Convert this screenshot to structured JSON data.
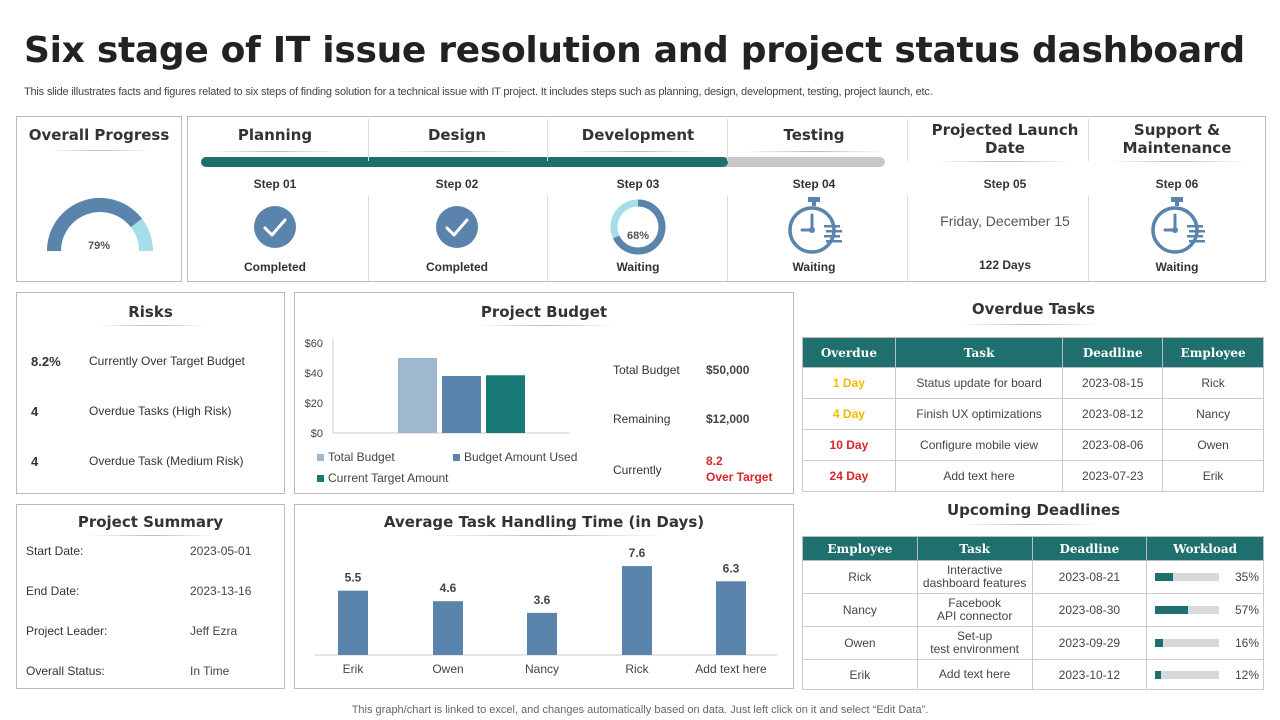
{
  "title": "Six stage of IT issue resolution and project status dashboard",
  "subtitle": "This slide illustrates facts and figures related to six steps of finding solution for a technical issue with IT project. It includes steps such as planning, design, development, testing, project launch, etc.",
  "footer": "This graph/chart is linked to excel, and changes automatically based on data. Just left click on it and select “Edit Data”.",
  "colors": {
    "teal": "#1f6f6f",
    "blue": "#5b84ad",
    "light_blue": "#a5dde8",
    "red": "#d9262a",
    "orange": "#f5b800"
  },
  "overall_progress": {
    "title": "Overall Progress",
    "value": "79%",
    "fraction": 0.79
  },
  "stages": [
    {
      "title": "Planning",
      "step": "Step 01",
      "status": "Completed",
      "icon": "check-circle-icon"
    },
    {
      "title": "Design",
      "step": "Step 02",
      "status": "Completed",
      "icon": "check-circle-icon"
    },
    {
      "title": "Development",
      "step": "Step 03",
      "status": "Waiting",
      "icon": "progress-ring-icon",
      "ring_value": "68%",
      "ring_fraction": 0.68
    },
    {
      "title": "Testing",
      "step": "Step 04",
      "status": "Waiting",
      "icon": "stopwatch-icon"
    },
    {
      "title": "Projected Launch Date",
      "step": "Step 05",
      "date": "Friday, December 15",
      "status": "122 Days"
    },
    {
      "title": "Support & Maintenance",
      "step": "Step 06",
      "status": "Waiting",
      "icon": "stopwatch-icon"
    }
  ],
  "stage_progress_fraction": 0.77,
  "risks": {
    "title": "Risks",
    "items": [
      {
        "value": "8.2%",
        "label": "Currently Over Target Budget",
        "color": "#d9262a"
      },
      {
        "value": "4",
        "label": "Overdue Tasks (High Risk)",
        "color": "#d9262a"
      },
      {
        "value": "4",
        "label": "Overdue Task (Medium Risk)",
        "color": "#f5b800"
      }
    ]
  },
  "budget": {
    "title": "Project Budget",
    "total_label": "Total Budget",
    "total_value": "$50,000",
    "remaining_label": "Remaining",
    "remaining_value": "$12,000",
    "current_label": "Currently",
    "current_value": "8.2",
    "current_note": "Over Target"
  },
  "summary": {
    "title": "Project Summary",
    "rows": [
      {
        "label": "Start Date:",
        "value": "2023-05-01"
      },
      {
        "label": "End Date:",
        "value": "2023-13-16"
      },
      {
        "label": "Project Leader:",
        "value": "Jeff Ezra"
      },
      {
        "label": "Overall Status:",
        "value": "In Time"
      }
    ]
  },
  "overdue": {
    "title": "Overdue Tasks",
    "headers": [
      "Overdue",
      "Task",
      "Deadline",
      "Employee"
    ],
    "rows": [
      {
        "overdue": "1 Day",
        "color": "#f5b800",
        "task": "Status update for board",
        "deadline": "2023-08-15",
        "employee": "Rick"
      },
      {
        "overdue": "4 Day",
        "color": "#f5b800",
        "task": "Finish UX optimizations",
        "deadline": "2023-08-12",
        "employee": "Nancy"
      },
      {
        "overdue": "10 Day",
        "color": "#d9262a",
        "task": "Configure mobile view",
        "deadline": "2023-08-06",
        "employee": "Owen"
      },
      {
        "overdue": "24 Day",
        "color": "#d9262a",
        "task": "Add text here",
        "deadline": "2023-07-23",
        "employee": "Erik"
      }
    ]
  },
  "upcoming": {
    "title": "Upcoming Deadlines",
    "headers": [
      "Employee",
      "Task",
      "Deadline",
      "Workload"
    ],
    "rows": [
      {
        "employee": "Rick",
        "task1": "Interactive",
        "task2": "dashboard features",
        "deadline": "2023-08-21",
        "workload": "35%",
        "fraction": 0.35
      },
      {
        "employee": "Nancy",
        "task1": "Facebook",
        "task2": "API connector",
        "deadline": "2023-08-30",
        "workload": "57%",
        "fraction": 0.57
      },
      {
        "employee": "Owen",
        "task1": "Set-up",
        "task2": "test environment",
        "deadline": "2023-09-29",
        "workload": "16%",
        "fraction": 0.16
      },
      {
        "employee": "Erik",
        "task1": "Add text here",
        "task2": "",
        "deadline": "2023-10-12",
        "workload": "12%",
        "fraction": 0.12
      }
    ]
  },
  "chart_data": [
    {
      "type": "bar",
      "title": "Project Budget",
      "categories": [
        ""
      ],
      "series": [
        {
          "name": "Total Budget",
          "values": [
            50
          ],
          "color": "#9fb7cf"
        },
        {
          "name": "Budget Amount Used",
          "values": [
            38
          ],
          "color": "#5b84ad"
        },
        {
          "name": "Current Target Amount",
          "values": [
            38.5
          ],
          "color": "#1a7a78"
        }
      ],
      "yticks": [
        "$60",
        "$40",
        "$20",
        "$0"
      ],
      "ylim": [
        0,
        60
      ],
      "legend": "bottom"
    },
    {
      "type": "bar",
      "title": "Average Task Handling Time (in Days)",
      "categories": [
        "Erik",
        "Owen",
        "Nancy",
        "Rick",
        "Add text here"
      ],
      "values": [
        5.5,
        4.6,
        3.6,
        7.6,
        6.3
      ],
      "labels": [
        "5.5",
        "4.6",
        "3.6",
        "7.6",
        "6.3"
      ],
      "ylim": [
        0,
        8.5
      ],
      "color": "#5b84ad"
    }
  ]
}
